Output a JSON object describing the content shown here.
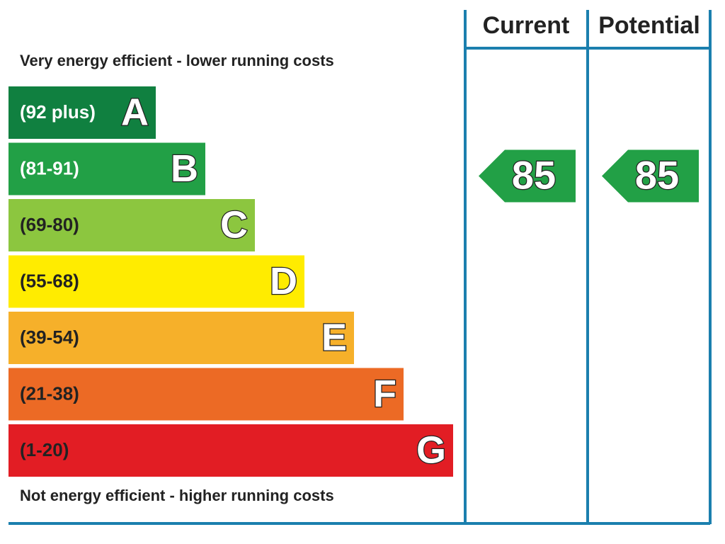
{
  "header": {
    "current": "Current",
    "potential": "Potential"
  },
  "top_note": "Very energy efficient - lower running costs",
  "bottom_note": "Not energy efficient - higher running costs",
  "bands": [
    {
      "range": "(92 plus)",
      "letter": "A",
      "color": "#108040"
    },
    {
      "range": "(81-91)",
      "letter": "B",
      "color": "#22a046"
    },
    {
      "range": "(69-80)",
      "letter": "C",
      "color": "#8cc63f"
    },
    {
      "range": "(55-68)",
      "letter": "D",
      "color": "#ffec00"
    },
    {
      "range": "(39-54)",
      "letter": "E",
      "color": "#f6b02a"
    },
    {
      "range": "(21-38)",
      "letter": "F",
      "color": "#ec6a25"
    },
    {
      "range": "(1-20)",
      "letter": "G",
      "color": "#e21d24"
    }
  ],
  "current": {
    "value": 85,
    "color": "#22a046"
  },
  "potential": {
    "value": 85,
    "color": "#22a046"
  }
}
